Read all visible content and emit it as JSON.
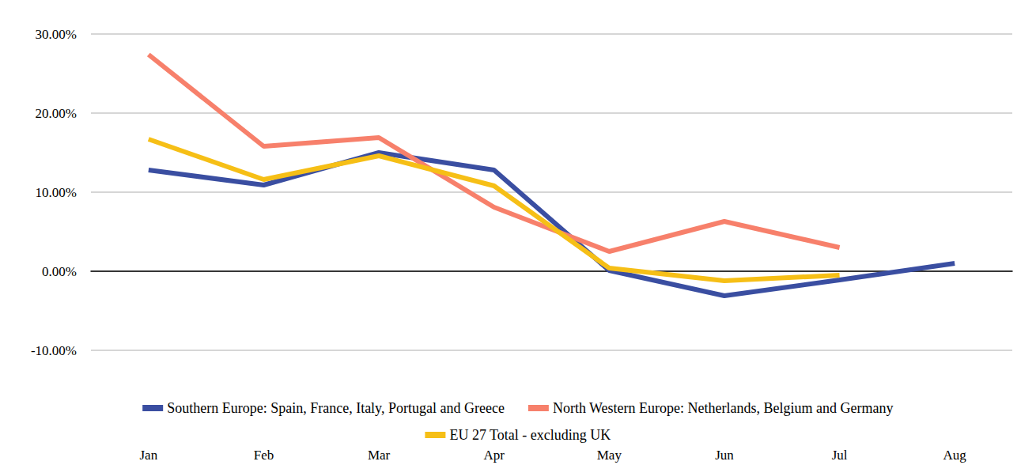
{
  "chart_data": {
    "type": "line",
    "categories": [
      "Jan",
      "Feb",
      "Mar",
      "Apr",
      "May",
      "Jun",
      "Jul",
      "Aug"
    ],
    "series": [
      {
        "name": "Southern Europe: Spain, France, Italy, Portugal and Greece",
        "color": "#3a4ea1",
        "values": [
          12.8,
          10.9,
          15.0,
          12.8,
          0.1,
          -3.1,
          -1.1,
          1.0
        ]
      },
      {
        "name": "North Western Europe: Netherlands, Belgium and Germany",
        "color": "#f7806b",
        "values": [
          27.4,
          15.8,
          16.9,
          8.1,
          2.5,
          6.3,
          3.0,
          null
        ]
      },
      {
        "name": "EU 27 Total - excluding UK",
        "color": "#f6bf16",
        "values": [
          16.7,
          11.6,
          14.6,
          10.8,
          0.4,
          -1.2,
          -0.5,
          null
        ]
      }
    ],
    "ylim": [
      -10,
      30
    ],
    "yticks": [
      {
        "value": -10,
        "label": "-10.00%"
      },
      {
        "value": 0,
        "label": "0.00%"
      },
      {
        "value": 10,
        "label": "10.00%"
      },
      {
        "value": 20,
        "label": "20.00%"
      },
      {
        "value": 30,
        "label": "30.00%"
      }
    ],
    "grid": true,
    "legend": "bottom"
  }
}
